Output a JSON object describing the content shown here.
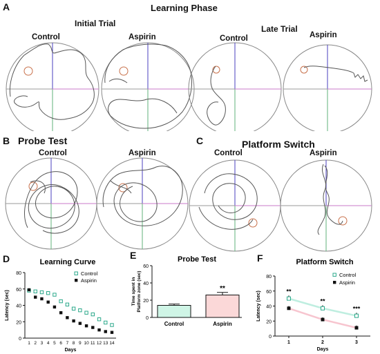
{
  "figure": {
    "learning_phase": {
      "letter": "A",
      "title": "Learning Phase",
      "initial_trial": "Initial Trial",
      "late_trial": "Late  Trial",
      "labels": [
        "Control",
        "Aspirin",
        "Control",
        "Aspirin"
      ]
    },
    "probe_test": {
      "letter": "B",
      "title": "Probe Test",
      "labels": [
        "Control",
        "Aspirin"
      ]
    },
    "platform_switch": {
      "letter": "C",
      "title": "Platform Switch",
      "labels": [
        "Control",
        "Aspirin"
      ]
    },
    "panel_letters": {
      "d": "D",
      "e": "E",
      "f": "F"
    },
    "colors": {
      "maze_circle": "#888888",
      "axis_blue": "#4a3fbf",
      "axis_pink": "#c878c8",
      "axis_green": "#5fb27a",
      "axis_gray": "#9a9a9a",
      "platform": "#c8704a",
      "path": "#555555",
      "control_teal": "#2aa88a",
      "aspirin_black": "#111111",
      "bar_control": "#cff5e6",
      "bar_aspirin": "#fbd8d8",
      "line_control": "#bfeee0",
      "line_aspirin": "#f7c5cf"
    }
  },
  "chart_data": [
    {
      "type": "line",
      "title": "Learning Curve",
      "xlabel": "Days",
      "ylabel": "Latency (sec)",
      "x": [
        1,
        2,
        3,
        4,
        5,
        6,
        7,
        8,
        9,
        10,
        11,
        12,
        13,
        14
      ],
      "xticks": [
        "1",
        "2",
        "3",
        "4",
        "5",
        "6",
        "7",
        "8",
        "9",
        "10",
        "11",
        "12",
        "13",
        "14"
      ],
      "ylim": [
        0,
        80
      ],
      "yticks": [
        "0",
        "20",
        "40",
        "60",
        "80"
      ],
      "legend": "top-right",
      "series": [
        {
          "name": "Control",
          "marker": "open-square",
          "values": [
            58,
            57,
            56,
            55,
            53,
            45,
            41,
            36,
            34,
            31,
            29,
            23,
            19,
            16
          ]
        },
        {
          "name": "Aspirin",
          "marker": "filled-square",
          "values": [
            59,
            50,
            48,
            44,
            38,
            31,
            25,
            21,
            18,
            15,
            13,
            10,
            8,
            7
          ]
        }
      ]
    },
    {
      "type": "bar",
      "title": "Probe Test",
      "ylabel": "Time spent in Platform zone (sec)",
      "categories": [
        "Control",
        "Aspirin"
      ],
      "values": [
        14,
        26
      ],
      "errors": [
        1.5,
        3
      ],
      "ylim": [
        0,
        60
      ],
      "yticks": [
        "0",
        "20",
        "40",
        "60"
      ],
      "annotations": [
        {
          "category": "Aspirin",
          "text": "**"
        }
      ]
    },
    {
      "type": "line",
      "title": "Platform Switch",
      "xlabel": "Days",
      "ylabel": "Latency (sec)",
      "x": [
        1,
        2,
        3
      ],
      "xticks": [
        "1",
        "2",
        "3"
      ],
      "ylim": [
        0,
        80
      ],
      "yticks": [
        "0",
        "20",
        "40",
        "60",
        "80"
      ],
      "legend": "top-right",
      "series": [
        {
          "name": "Control",
          "marker": "open-square",
          "values": [
            50,
            37,
            27
          ]
        },
        {
          "name": "Aspirin",
          "marker": "filled-square",
          "values": [
            37,
            22,
            11
          ]
        }
      ],
      "annotations": [
        "**",
        "**",
        "***"
      ]
    }
  ]
}
